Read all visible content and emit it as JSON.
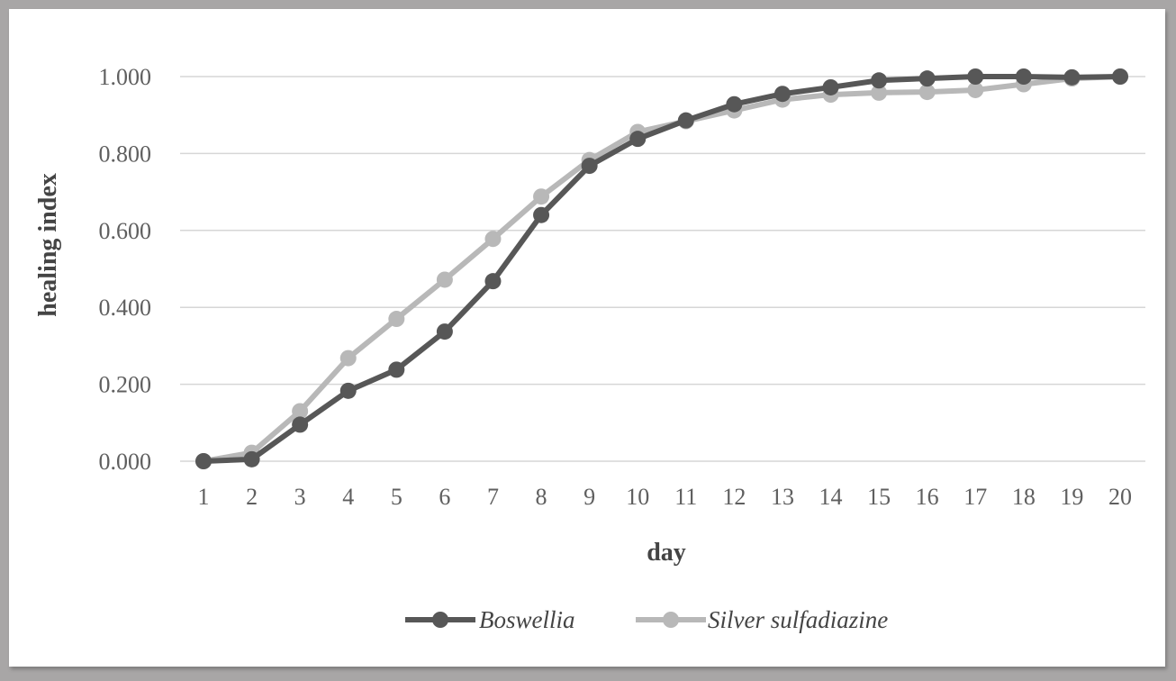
{
  "chart_data": {
    "type": "line",
    "title": "",
    "xlabel": "day",
    "ylabel": "healing index",
    "categories": [
      "1",
      "2",
      "3",
      "4",
      "5",
      "6",
      "7",
      "8",
      "9",
      "10",
      "11",
      "12",
      "13",
      "14",
      "15",
      "16",
      "17",
      "18",
      "19",
      "20"
    ],
    "ylim": [
      0,
      1
    ],
    "yticks": [
      "0.000",
      "0.200",
      "0.400",
      "0.600",
      "0.800",
      "1.000"
    ],
    "grid": true,
    "legend_position": "bottom",
    "series": [
      {
        "name": "Boswellia",
        "color": "#575757",
        "values": [
          0.0,
          0.005,
          0.095,
          0.183,
          0.238,
          0.337,
          0.468,
          0.64,
          0.768,
          0.838,
          0.886,
          0.928,
          0.955,
          0.972,
          0.99,
          0.995,
          1.0,
          1.0,
          0.998,
          1.0
        ]
      },
      {
        "name": "Silver sulfadiazine",
        "color": "#b8b8b8",
        "values": [
          0.0,
          0.022,
          0.13,
          0.268,
          0.37,
          0.472,
          0.578,
          0.688,
          0.783,
          0.856,
          0.884,
          0.912,
          0.94,
          0.953,
          0.958,
          0.96,
          0.965,
          0.98,
          0.995,
          1.0
        ]
      }
    ]
  }
}
